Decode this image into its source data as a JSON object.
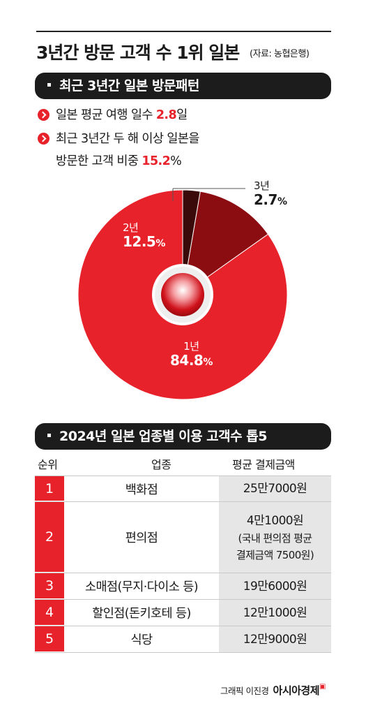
{
  "header": {
    "title": "3년간 방문 고객 수 1위 일본",
    "source": "(자료: 농협은행)"
  },
  "section1": {
    "title": "최근 3년간 일본 방문패턴",
    "bullet1_prefix": "일본 평균 여행 일수 ",
    "bullet1_value": "2.8",
    "bullet1_suffix": "일",
    "bullet2_line1": "최근 3년간 두 해 이상 일본을",
    "bullet2_line2_prefix": "방문한 고객 비중 ",
    "bullet2_line2_value": "15.2",
    "bullet2_line2_suffix": "%"
  },
  "chart_data": {
    "type": "pie",
    "title": "",
    "slices": [
      {
        "label": "1년",
        "value": 84.8,
        "color": "#e8222b"
      },
      {
        "label": "2년",
        "value": 12.5,
        "color": "#8b0d12"
      },
      {
        "label": "3년",
        "value": 2.7,
        "color": "#3a0a0a"
      }
    ],
    "value_suffix": "%"
  },
  "section2": {
    "title": "2024년 일본 업종별 이용 고객수 톱5",
    "columns": [
      "순위",
      "업종",
      "평균 결제금액"
    ],
    "rows": [
      {
        "rank": "1",
        "industry": "백화점",
        "amount": "25만7000원",
        "note1": "",
        "note2": ""
      },
      {
        "rank": "2",
        "industry": "편의점",
        "amount": "4만1000원",
        "note1": "(국내 편의점 평균",
        "note2": "결제금액 7500원)"
      },
      {
        "rank": "3",
        "industry": "소매점(무지·다이소 등)",
        "amount": "19만6000원",
        "note1": "",
        "note2": ""
      },
      {
        "rank": "4",
        "industry": "할인점(돈키호테 등)",
        "amount": "12만1000원",
        "note1": "",
        "note2": ""
      },
      {
        "rank": "5",
        "industry": "식당",
        "amount": "12만9000원",
        "note1": "",
        "note2": ""
      }
    ]
  },
  "footer": {
    "credit": "그래픽 이진경",
    "brand": "아시아경제"
  },
  "colors": {
    "accent_red": "#e8222b",
    "dark_red": "#8b0d12",
    "darkest_red": "#3a0a0a",
    "bar_bg": "#1c1c1c",
    "amount_bg": "#e6e6e6"
  }
}
